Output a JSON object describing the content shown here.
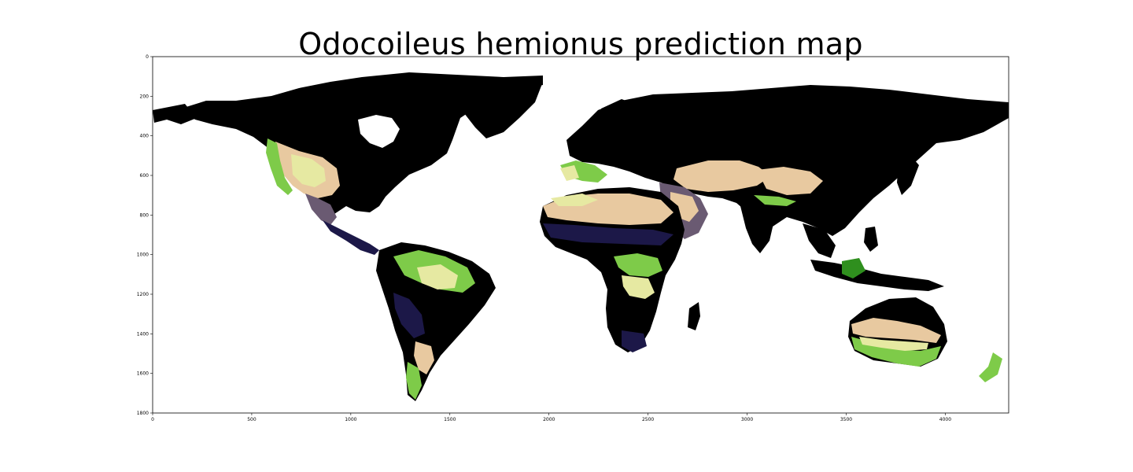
{
  "title": "Odocoileus hemionus prediction map",
  "axes": {
    "x_range": [
      0,
      4320
    ],
    "y_range": [
      0,
      1800
    ],
    "y_inverted": true,
    "x_ticks": [
      0,
      500,
      1000,
      1500,
      2000,
      2500,
      3000,
      3500,
      4000
    ],
    "y_ticks": [
      0,
      200,
      400,
      600,
      800,
      1000,
      1200,
      1400,
      1600,
      1800
    ]
  },
  "colors": {
    "ocean": "#ffffff",
    "low": "#000000",
    "low_mid": "#1c1848",
    "mid": "#6a5a72",
    "mid_high": "#e8c9a0",
    "high_a": "#e6e9a2",
    "high_b": "#7ecb49",
    "highest": "#2f8f1e"
  },
  "colorscale": "black-navy-tan-yellow-green (matplotlib gist_earth style)"
}
